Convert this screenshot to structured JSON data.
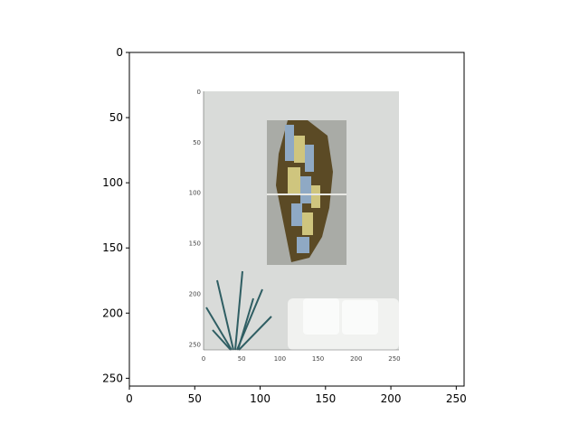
{
  "chart_data": {
    "type": "image",
    "title": "",
    "xlabel": "",
    "ylabel": "",
    "xlim": [
      0,
      256
    ],
    "ylim": [
      256,
      0
    ],
    "x_ticks": [
      0,
      50,
      100,
      150,
      200,
      250
    ],
    "y_ticks": [
      0,
      50,
      100,
      150,
      200,
      250
    ],
    "x_tick_labels": [
      "0",
      "50",
      "100",
      "150",
      "200",
      "250"
    ],
    "y_tick_labels": [
      "0",
      "50",
      "100",
      "150",
      "200",
      "250"
    ],
    "grid": false,
    "legend": "none",
    "embedded_image": {
      "description_icon": "framed-manhattan-map-photo-icon",
      "x_tick_labels": [
        "0",
        "50",
        "100",
        "150",
        "200",
        "250"
      ],
      "y_tick_labels": [
        "0",
        "50",
        "100",
        "150",
        "200",
        "250"
      ]
    }
  },
  "colors": {
    "background": "#ffffff",
    "axis": "#000000",
    "wall": "#d9dbd9",
    "frame": "#a9aba6",
    "map_land": "#5b4a25",
    "map_blue": "#8fa9c4",
    "map_yellow": "#cfc57e",
    "plant": "#2f5e63",
    "sofa": "#f1f2f0"
  }
}
